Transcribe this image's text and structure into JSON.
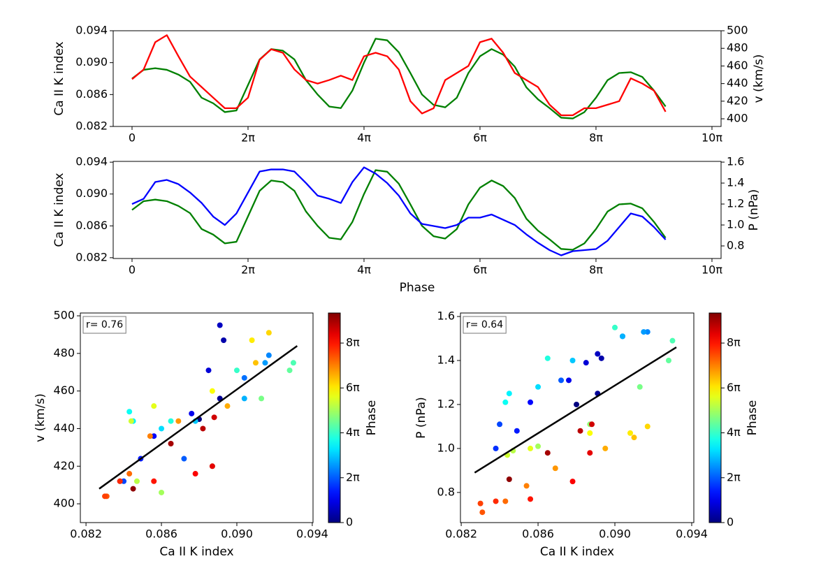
{
  "chart_data": [
    {
      "type": "line",
      "x": [
        0,
        0.2,
        0.4,
        0.6,
        0.8,
        1,
        1.2,
        1.4,
        1.6,
        1.8,
        2,
        2.2,
        2.4,
        2.6,
        2.8,
        3,
        3.2,
        3.4,
        3.6,
        3.8,
        4,
        4.2,
        4.4,
        4.6,
        4.8,
        5,
        5.2,
        5.4,
        5.6,
        5.8,
        6,
        6.2,
        6.4,
        6.6,
        6.8,
        7,
        7.2,
        7.4,
        7.6,
        7.8,
        8,
        8.2,
        8.4,
        8.6,
        8.8,
        9,
        9.2
      ],
      "xlim": [
        -0.325,
        10.157
      ],
      "xticks": [
        0,
        {
          "value": 2,
          "label": "2π"
        },
        {
          "value": 4,
          "label": "4π"
        },
        {
          "value": 6,
          "label": "6π"
        },
        {
          "value": 8,
          "label": "8π"
        },
        {
          "value": 10,
          "label": "10π"
        }
      ],
      "ylabel": "Ca II K index",
      "y2label": "v (km/s)",
      "ylim": [
        0.082,
        0.094
      ],
      "yticks": [
        0.082,
        0.086,
        {
          "value": 0.09,
          "label": "0.090"
        },
        0.094
      ],
      "y2lim": [
        391.3,
        500
      ],
      "y2ticks": [
        400,
        420,
        440,
        460,
        480,
        500
      ],
      "series": [
        {
          "color": "#008000",
          "values": [
            0.088,
            0.0891,
            0.0893,
            0.0891,
            0.0885,
            0.0876,
            0.0856,
            0.0849,
            0.0838,
            0.084,
            0.0872,
            0.0904,
            0.0917,
            0.0915,
            0.0904,
            0.0878,
            0.086,
            0.0845,
            0.0843,
            0.0865,
            0.09,
            0.093,
            0.0928,
            0.0913,
            0.0887,
            0.086,
            0.0847,
            0.0844,
            0.0856,
            0.0887,
            0.0908,
            0.0917,
            0.091,
            0.0895,
            0.0869,
            0.0854,
            0.0843,
            0.0831,
            0.083,
            0.0838,
            0.0856,
            0.0878,
            0.0887,
            0.0888,
            0.0882,
            0.0865,
            0.0845
          ]
        },
        {
          "color": "#ff0000",
          "axis": "y2",
          "values": [
            445,
            456,
            487,
            495,
            471,
            448,
            436,
            424,
            412,
            412,
            424,
            467,
            479,
            475,
            456,
            444,
            440,
            444,
            449,
            444,
            471,
            475,
            471,
            456,
            420,
            406,
            412,
            444,
            452,
            460,
            487,
            491,
            475,
            452,
            444,
            436,
            416,
            404,
            404,
            412,
            412,
            416,
            420,
            446,
            440,
            432,
            408
          ]
        }
      ]
    },
    {
      "type": "line",
      "x": [
        0,
        0.2,
        0.4,
        0.6,
        0.8,
        1,
        1.2,
        1.4,
        1.6,
        1.8,
        2,
        2.2,
        2.4,
        2.6,
        2.8,
        3,
        3.2,
        3.4,
        3.6,
        3.8,
        4,
        4.2,
        4.4,
        4.6,
        4.8,
        5,
        5.2,
        5.4,
        5.6,
        5.8,
        6,
        6.2,
        6.4,
        6.6,
        6.8,
        7,
        7.2,
        7.4,
        7.6,
        7.8,
        8,
        8.2,
        8.4,
        8.6,
        8.8,
        9,
        9.2
      ],
      "xlim": [
        -0.325,
        10.157
      ],
      "xticks": [
        0,
        {
          "value": 2,
          "label": "2π"
        },
        {
          "value": 4,
          "label": "4π"
        },
        {
          "value": 6,
          "label": "6π"
        },
        {
          "value": 8,
          "label": "8π"
        },
        {
          "value": 10,
          "label": "10π"
        }
      ],
      "xlabel": "Phase",
      "ylabel": "Ca II K index",
      "y2label": "P (nPa)",
      "ylim": [
        0.0819,
        0.0941
      ],
      "yticks": [
        0.082,
        0.086,
        {
          "value": 0.09,
          "label": "0.090"
        },
        0.094
      ],
      "y2lim": [
        0.68,
        1.607
      ],
      "y2ticks": [
        0.8,
        {
          "value": 1,
          "label": "1.0"
        },
        1.2,
        1.4,
        1.6
      ],
      "series": [
        {
          "color": "#008000",
          "values": [
            0.088,
            0.0891,
            0.0893,
            0.0891,
            0.0885,
            0.0876,
            0.0856,
            0.0849,
            0.0838,
            0.084,
            0.0872,
            0.0904,
            0.0917,
            0.0915,
            0.0904,
            0.0878,
            0.086,
            0.0845,
            0.0843,
            0.0865,
            0.09,
            0.093,
            0.0928,
            0.0913,
            0.0887,
            0.086,
            0.0847,
            0.0844,
            0.0856,
            0.0887,
            0.0908,
            0.0917,
            0.091,
            0.0895,
            0.0869,
            0.0854,
            0.0843,
            0.0831,
            0.083,
            0.0838,
            0.0856,
            0.0878,
            0.0887,
            0.0888,
            0.0882,
            0.0865,
            0.0845
          ]
        },
        {
          "color": "#0000ff",
          "axis": "y2",
          "values": [
            1.2,
            1.25,
            1.41,
            1.43,
            1.39,
            1.31,
            1.21,
            1.08,
            1,
            1.11,
            1.31,
            1.51,
            1.53,
            1.53,
            1.51,
            1.4,
            1.28,
            1.25,
            1.21,
            1.41,
            1.55,
            1.49,
            1.4,
            1.28,
            1.11,
            1.01,
            0.99,
            0.97,
            1,
            1.07,
            1.07,
            1.1,
            1.05,
            1,
            0.91,
            0.83,
            0.76,
            0.71,
            0.75,
            0.76,
            0.77,
            0.85,
            0.98,
            1.11,
            1.08,
            0.98,
            0.86
          ]
        }
      ]
    },
    {
      "type": "scatter",
      "x": [
        0.088,
        0.0891,
        0.0893,
        0.0891,
        0.0885,
        0.0876,
        0.0856,
        0.0849,
        0.0838,
        0.084,
        0.0872,
        0.0904,
        0.0917,
        0.0915,
        0.0904,
        0.0878,
        0.086,
        0.0845,
        0.0843,
        0.0865,
        0.09,
        0.093,
        0.0928,
        0.0913,
        0.0887,
        0.086,
        0.0847,
        0.0844,
        0.0856,
        0.0887,
        0.0908,
        0.0917,
        0.091,
        0.0895,
        0.0869,
        0.0854,
        0.0843,
        0.0831,
        0.083,
        0.0838,
        0.0856,
        0.0878,
        0.0887,
        0.0888,
        0.0882,
        0.0865,
        0.0845
      ],
      "y": [
        445,
        456,
        487,
        495,
        471,
        448,
        436,
        424,
        412,
        412,
        424,
        467,
        479,
        475,
        456,
        444,
        440,
        444,
        449,
        444,
        471,
        475,
        471,
        456,
        420,
        406,
        412,
        444,
        452,
        460,
        487,
        491,
        475,
        452,
        444,
        436,
        416,
        404,
        404,
        412,
        412,
        416,
        420,
        446,
        440,
        432,
        408
      ],
      "c": [
        0,
        0.2,
        0.4,
        0.6,
        0.8,
        1,
        1.2,
        1.4,
        1.6,
        1.8,
        2,
        2.2,
        2.4,
        2.6,
        2.8,
        3,
        3.2,
        3.4,
        3.6,
        3.8,
        4,
        4.2,
        4.4,
        4.6,
        4.8,
        5,
        5.2,
        5.4,
        5.6,
        5.8,
        6,
        6.2,
        6.4,
        6.6,
        6.8,
        7,
        7.2,
        7.4,
        7.6,
        7.8,
        8,
        8.2,
        8.4,
        8.6,
        8.8,
        9,
        9.2
      ],
      "colormap": "jet",
      "xlim": [
        0.0817,
        0.09404
      ],
      "xticks": [
        0.082,
        0.086,
        {
          "value": 0.09,
          "label": "0.090"
        },
        0.094
      ],
      "ylim": [
        390,
        501.5
      ],
      "yticks": [
        400,
        420,
        440,
        460,
        480,
        500
      ],
      "xlabel": "Ca II K index",
      "ylabel": "v (km/s)",
      "clim": [
        0,
        9.34
      ],
      "cticks": [
        0,
        {
          "value": 2,
          "label": "2π"
        },
        {
          "value": 4,
          "label": "4π"
        },
        {
          "value": 6,
          "label": "6π"
        },
        {
          "value": 8,
          "label": "8π"
        }
      ],
      "colorbar_label": "Phase",
      "fit": {
        "color": "#000000",
        "x": [
          0.0827,
          0.0932
        ],
        "y": [
          408,
          484
        ]
      },
      "annotation": "r= 0.76"
    },
    {
      "type": "scatter",
      "x": [
        0.088,
        0.0891,
        0.0893,
        0.0891,
        0.0885,
        0.0876,
        0.0856,
        0.0849,
        0.0838,
        0.084,
        0.0872,
        0.0904,
        0.0917,
        0.0915,
        0.0904,
        0.0878,
        0.086,
        0.0845,
        0.0843,
        0.0865,
        0.09,
        0.093,
        0.0928,
        0.0913,
        0.0887,
        0.086,
        0.0847,
        0.0844,
        0.0856,
        0.0887,
        0.0908,
        0.0917,
        0.091,
        0.0895,
        0.0869,
        0.0854,
        0.0843,
        0.0831,
        0.083,
        0.0838,
        0.0856,
        0.0878,
        0.0887,
        0.0888,
        0.0882,
        0.0865,
        0.0845
      ],
      "y": [
        1.2,
        1.25,
        1.41,
        1.43,
        1.39,
        1.31,
        1.21,
        1.08,
        1,
        1.11,
        1.31,
        1.51,
        1.53,
        1.53,
        1.51,
        1.4,
        1.28,
        1.25,
        1.21,
        1.41,
        1.55,
        1.49,
        1.4,
        1.28,
        1.11,
        1.01,
        0.99,
        0.97,
        1,
        1.07,
        1.07,
        1.1,
        1.05,
        1,
        0.91,
        0.83,
        0.76,
        0.71,
        0.75,
        0.76,
        0.77,
        0.85,
        0.98,
        1.11,
        1.08,
        0.98,
        0.86
      ],
      "c": [
        0,
        0.2,
        0.4,
        0.6,
        0.8,
        1,
        1.2,
        1.4,
        1.6,
        1.8,
        2,
        2.2,
        2.4,
        2.6,
        2.8,
        3,
        3.2,
        3.4,
        3.6,
        3.8,
        4,
        4.2,
        4.4,
        4.6,
        4.8,
        5,
        5.2,
        5.4,
        5.6,
        5.8,
        6,
        6.2,
        6.4,
        6.6,
        6.8,
        7,
        7.2,
        7.4,
        7.6,
        7.8,
        8,
        8.2,
        8.4,
        8.6,
        8.8,
        9,
        9.2
      ],
      "colormap": "jet",
      "xlim": [
        0.08196,
        0.09411
      ],
      "xticks": [
        0.082,
        0.086,
        {
          "value": 0.09,
          "label": "0.090"
        },
        0.094
      ],
      "ylim": [
        0.663,
        1.616
      ],
      "yticks": [
        0.8,
        {
          "value": 1,
          "label": "1.0"
        },
        1.2,
        1.4,
        1.6
      ],
      "xlabel": "Ca II K index",
      "ylabel": "P (nPa)",
      "clim": [
        0,
        9.34
      ],
      "cticks": [
        0,
        {
          "value": 2,
          "label": "2π"
        },
        {
          "value": 4,
          "label": "4π"
        },
        {
          "value": 6,
          "label": "6π"
        },
        {
          "value": 8,
          "label": "8π"
        }
      ],
      "colorbar_label": "Phase",
      "fit": {
        "color": "#000000",
        "x": [
          0.0827,
          0.0932
        ],
        "y": [
          0.89,
          1.46
        ]
      },
      "annotation": "r= 0.64"
    }
  ]
}
